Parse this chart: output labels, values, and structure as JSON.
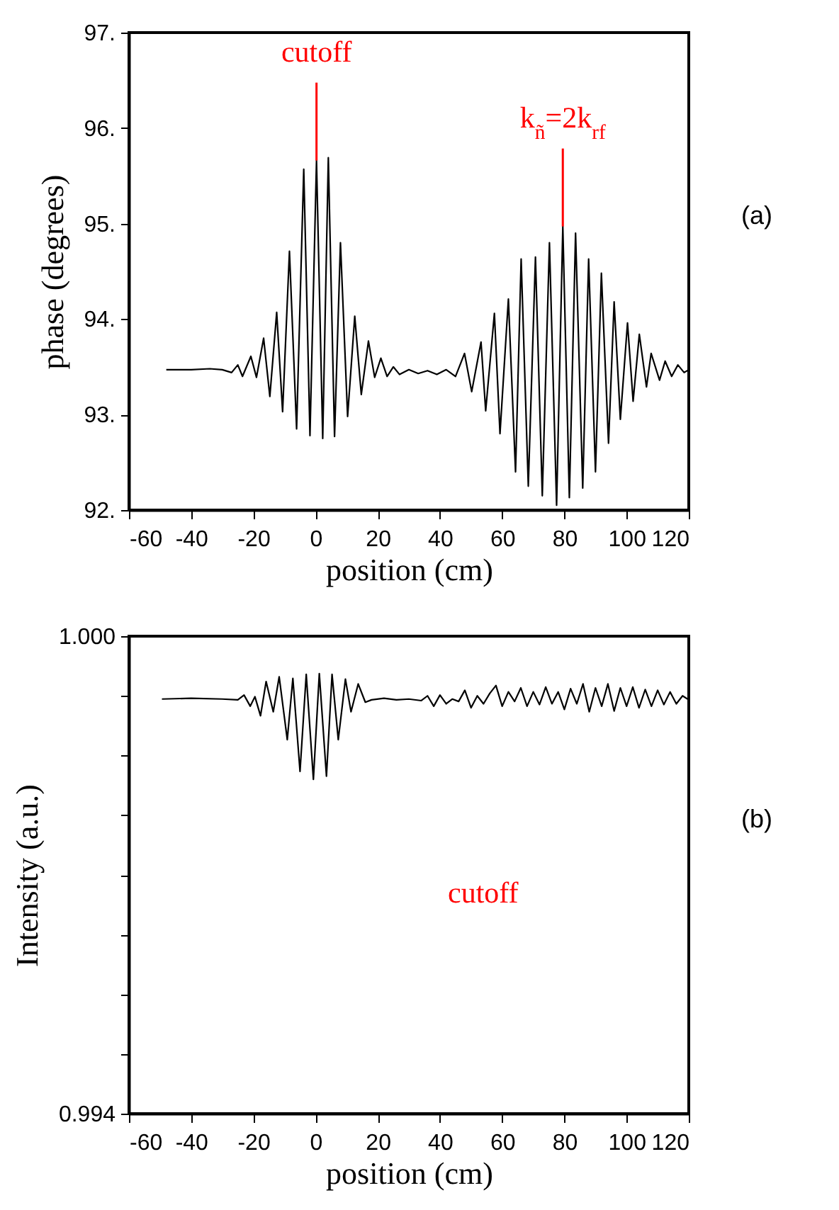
{
  "chart_data": [
    {
      "type": "line",
      "xlabel": "position (cm)",
      "ylabel": "phase (degrees)",
      "xlim": [
        -60,
        120
      ],
      "xticks": [
        -60,
        -40,
        -20,
        0,
        20,
        40,
        60,
        80,
        100,
        120
      ],
      "ylim": [
        92,
        97
      ],
      "yticks": [
        {
          "value": 92,
          "label": "92."
        },
        {
          "value": 93,
          "label": "93."
        },
        {
          "value": 94,
          "label": "94."
        },
        {
          "value": 95,
          "label": "95."
        },
        {
          "value": 96,
          "label": "96."
        },
        {
          "value": 97,
          "label": "97."
        }
      ],
      "grid": false,
      "marker": "none",
      "annotations": [
        {
          "text": "cutoff",
          "x": 0.3,
          "y": 95.66
        },
        {
          "text": "k$_{ñ}$=2k$_{rf}$",
          "x": 79.5,
          "y": 94.97
        },
        "(a)"
      ],
      "series": [
        {
          "color": "#000000",
          "x": [
            -48,
            -40,
            -34,
            -30,
            -27,
            -25,
            -23.5,
            -20.8,
            -19.0,
            -16.7,
            -14.7,
            -12.5,
            -10.6,
            -8.4,
            -6.1,
            -3.8,
            -1.8,
            0.3,
            2.3,
            4.1,
            6.1,
            8.0,
            10.3,
            12.6,
            14.7,
            17.0,
            19.0,
            21.0,
            23,
            25,
            27,
            30,
            33,
            36,
            39,
            42,
            45,
            47.9,
            50.2,
            53.2,
            54.7,
            57.5,
            59.3,
            62.0,
            64.3,
            66.1,
            68.4,
            70.7,
            72.9,
            75.2,
            77.5,
            79.5,
            81.6,
            83.6,
            85.9,
            87.8,
            90.0,
            91.9,
            94.2,
            96.0,
            98.0,
            100.3,
            102.1,
            104.1,
            106.4,
            107.9,
            110.6,
            112.4,
            114.5,
            116.5,
            118.5,
            120
          ],
          "values": [
            93.47,
            93.47,
            93.48,
            93.47,
            93.44,
            93.52,
            93.4,
            93.61,
            93.39,
            93.8,
            93.19,
            94.07,
            93.03,
            94.71,
            92.85,
            95.57,
            92.78,
            95.66,
            92.75,
            95.69,
            92.77,
            94.8,
            92.98,
            94.03,
            93.21,
            93.77,
            93.39,
            93.59,
            93.4,
            93.5,
            93.42,
            93.47,
            93.43,
            93.46,
            93.42,
            93.47,
            93.4,
            93.64,
            93.24,
            93.76,
            93.04,
            94.06,
            92.8,
            94.21,
            92.4,
            94.63,
            92.25,
            94.65,
            92.15,
            94.8,
            92.05,
            94.97,
            92.13,
            94.9,
            92.23,
            94.63,
            92.4,
            94.48,
            92.7,
            94.18,
            92.95,
            93.96,
            93.14,
            93.84,
            93.29,
            93.64,
            93.36,
            93.56,
            93.4,
            93.52,
            93.44,
            93.47
          ]
        }
      ]
    },
    {
      "type": "line",
      "xlabel": "position (cm)",
      "ylabel": "Intensity (a.u.)",
      "xlim": [
        -60,
        120
      ],
      "xticks": [
        -60,
        -40,
        -20,
        0,
        20,
        40,
        60,
        80,
        100,
        120
      ],
      "ylim": [
        0.994,
        1.0
      ],
      "yticks": [
        {
          "value": 0.994,
          "label": "0.994"
        },
        {
          "value": 0.99475,
          "label": null
        },
        {
          "value": 0.9955,
          "label": null
        },
        {
          "value": 0.99625,
          "label": null
        },
        {
          "value": 0.997,
          "label": null
        },
        {
          "value": 0.99775,
          "label": null
        },
        {
          "value": 0.9985,
          "label": null
        },
        {
          "value": 0.99925,
          "label": null
        },
        {
          "value": 1.0,
          "label": "1.000"
        }
      ],
      "grid": false,
      "marker": "none",
      "annotations": [
        "cutoff",
        "(b)"
      ],
      "series": [
        {
          "color": "#000000",
          "x": [
            -49.4,
            -40,
            -30,
            -25,
            -23,
            -21,
            -19.5,
            -17.7,
            -15.9,
            -13.6,
            -11.7,
            -9.1,
            -7.3,
            -5.0,
            -3.0,
            -0.7,
            1.2,
            3.5,
            5.3,
            7.3,
            9.6,
            11.4,
            13.7,
            16.0,
            18,
            22,
            26,
            30,
            34,
            36,
            38,
            40,
            42,
            44,
            46,
            48,
            50,
            52,
            54,
            56,
            58,
            60,
            62,
            64,
            66,
            68,
            70,
            72,
            74,
            76,
            78,
            80,
            82,
            84,
            86,
            88,
            90,
            92,
            94,
            96,
            98,
            100,
            102,
            104,
            106,
            108,
            110,
            112,
            114,
            116,
            118,
            120
          ],
          "values": [
            0.99921,
            0.99922,
            0.99921,
            0.9992,
            0.99926,
            0.99912,
            0.99924,
            0.999,
            0.99943,
            0.99905,
            0.99949,
            0.9987,
            0.99947,
            0.9983,
            0.99952,
            0.9982,
            0.99953,
            0.99824,
            0.99952,
            0.9987,
            0.99946,
            0.99905,
            0.9994,
            0.99917,
            0.9992,
            0.99922,
            0.9992,
            0.99921,
            0.99919,
            0.99925,
            0.99912,
            0.99926,
            0.99915,
            0.99921,
            0.99918,
            0.99932,
            0.9991,
            0.99925,
            0.99915,
            0.99928,
            0.99938,
            0.99912,
            0.9993,
            0.99918,
            0.99935,
            0.99912,
            0.9993,
            0.99914,
            0.99936,
            0.99915,
            0.9993,
            0.99908,
            0.99934,
            0.99915,
            0.9994,
            0.99905,
            0.99935,
            0.99912,
            0.9994,
            0.99906,
            0.99935,
            0.99912,
            0.99936,
            0.9991,
            0.99933,
            0.99912,
            0.99932,
            0.99914,
            0.9993,
            0.99915,
            0.99925,
            0.9992
          ]
        }
      ]
    }
  ]
}
